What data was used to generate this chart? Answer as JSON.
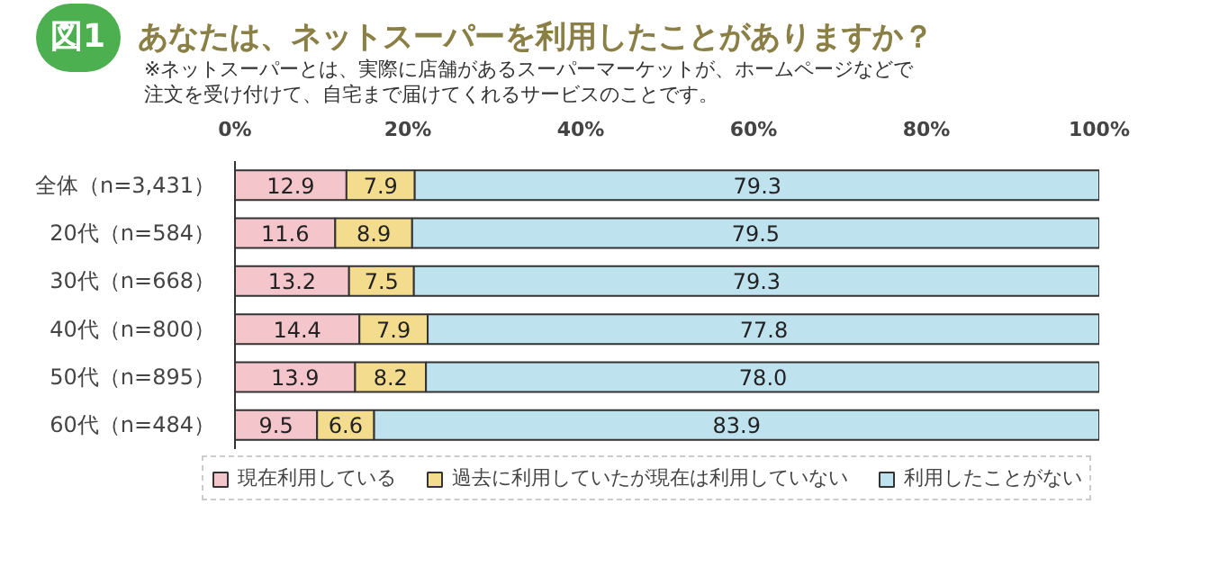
{
  "chart_data": {
    "type": "bar",
    "orientation": "horizontal",
    "stacked": true,
    "legend": "bottom",
    "title": "あなたは、ネットスーパーを利用したことがありますか？",
    "subtitle": "※ネットスーパーとは、実際に店舗があるスーパーマーケットが、ホームページなどで注文を受け付けて、自宅まで届けてくれるサービスのことです。",
    "annotations": [
      "図1"
    ],
    "categories": [
      "全体（n=3,431）",
      "20代（n=584）",
      "30代（n=668）",
      "40代（n=800）",
      "50代（n=895）",
      "60代（n=484）"
    ],
    "xlim": [
      0,
      100
    ],
    "xticks": [
      {
        "value": 0,
        "label": "0%"
      },
      {
        "value": 20,
        "label": "20%"
      },
      {
        "value": 40,
        "label": "40%"
      },
      {
        "value": 60,
        "label": "60%"
      },
      {
        "value": 80,
        "label": "80%"
      },
      {
        "value": 100,
        "label": "100%"
      }
    ],
    "series": [
      {
        "name": "現在利用している",
        "color": "#f4c6cc",
        "values": [
          12.9,
          11.6,
          13.2,
          14.4,
          13.9,
          9.5
        ],
        "value_labels": [
          "12.9",
          "11.6",
          "13.2",
          "14.4",
          "13.9",
          "9.5"
        ]
      },
      {
        "name": "過去に利用していたが現在は利用していない",
        "color": "#f3dc8e",
        "values": [
          7.9,
          8.9,
          7.5,
          7.9,
          8.2,
          6.6
        ],
        "value_labels": [
          "7.9",
          "8.9",
          "7.5",
          "7.9",
          "8.2",
          "6.6"
        ]
      },
      {
        "name": "利用したことがない",
        "color": "#bfe2ef",
        "values": [
          79.3,
          79.5,
          79.3,
          77.8,
          78.0,
          83.9
        ],
        "value_labels": [
          "79.3",
          "79.5",
          "79.3",
          "77.8",
          "78.0",
          "83.9"
        ]
      }
    ]
  }
}
